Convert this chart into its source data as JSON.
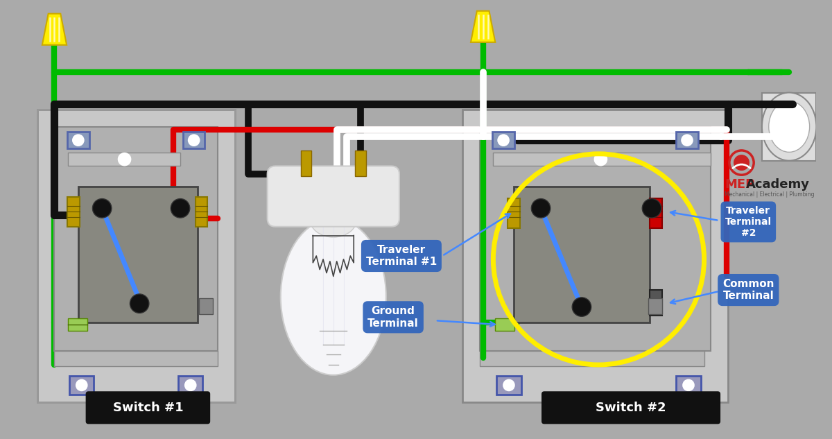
{
  "bg_color": "#aaaaaa",
  "wire_colors": {
    "green": "#00bb00",
    "black": "#111111",
    "red": "#dd0000",
    "white": "#ffffff",
    "blue": "#4488ff",
    "yellow": "#ffee00"
  },
  "sw1_label": "Switch #1",
  "sw2_label": "Switch #2",
  "ann_traveler1": "Traveler\nTerminal #1",
  "ann_traveler2": "Traveler\nTerminal\n#2",
  "ann_ground": "Ground\nTerminal",
  "ann_common": "Common\nTerminal",
  "mep_text1": "MEP",
  "mep_text2": "Academy",
  "mep_sub": "Mechanical | Electrical | Plumbing",
  "label_bg": "#3366bb",
  "wire_lw": 6,
  "wire_lw_thick": 8
}
